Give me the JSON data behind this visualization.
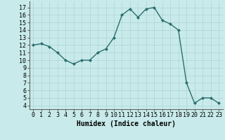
{
  "x": [
    0,
    1,
    2,
    3,
    4,
    5,
    6,
    7,
    8,
    9,
    10,
    11,
    12,
    13,
    14,
    15,
    16,
    17,
    18,
    19,
    20,
    21,
    22,
    23
  ],
  "y": [
    12,
    12.2,
    11.8,
    11,
    10,
    9.5,
    10,
    10,
    11,
    11.5,
    13,
    16,
    16.8,
    15.7,
    16.8,
    17.0,
    15.3,
    14.8,
    14,
    7,
    4.3,
    5,
    5,
    4.3
  ],
  "line_color": "#2d6e6e",
  "marker": "D",
  "marker_size": 2,
  "line_width": 1.0,
  "bg_color": "#c8eaea",
  "grid_color": "#aed4d4",
  "xlabel": "Humidex (Indice chaleur)",
  "xlim": [
    -0.5,
    23.5
  ],
  "ylim": [
    3.5,
    17.8
  ],
  "yticks": [
    4,
    5,
    6,
    7,
    8,
    9,
    10,
    11,
    12,
    13,
    14,
    15,
    16,
    17
  ],
  "xticks": [
    0,
    1,
    2,
    3,
    4,
    5,
    6,
    7,
    8,
    9,
    10,
    11,
    12,
    13,
    14,
    15,
    16,
    17,
    18,
    19,
    20,
    21,
    22,
    23
  ],
  "xlabel_fontsize": 7,
  "tick_fontsize": 6
}
